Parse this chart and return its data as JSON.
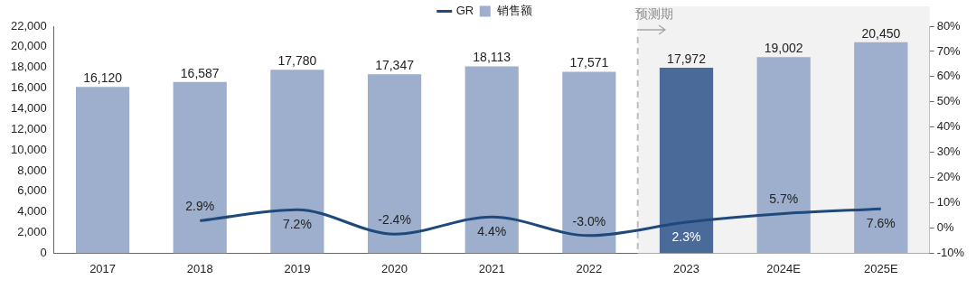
{
  "chart_data": {
    "type": "bar",
    "categories": [
      "2017",
      "2018",
      "2019",
      "2020",
      "2021",
      "2022",
      "2023",
      "2024E",
      "2025E"
    ],
    "series": [
      {
        "name": "GR",
        "type": "line",
        "axis": "y2",
        "color": "#1f497d",
        "values": [
          null,
          2.9,
          7.2,
          -2.4,
          4.4,
          -3.0,
          2.3,
          5.7,
          7.6
        ],
        "value_labels": [
          null,
          "2.9%",
          "7.2%",
          "-2.4%",
          "4.4%",
          "-3.0%",
          "2.3%",
          "5.7%",
          "7.6%"
        ]
      },
      {
        "name": "销售额",
        "color": "#9dafcc",
        "colors": [
          "#9dafcc",
          "#9dafcc",
          "#9dafcc",
          "#9dafcc",
          "#9dafcc",
          "#9dafcc",
          "#4a6a99",
          "#9dafcc",
          "#9dafcc"
        ],
        "values": [
          16120,
          16587,
          17780,
          17347,
          18113,
          17571,
          17972,
          19002,
          20450
        ],
        "value_labels": [
          "16,120",
          "16,587",
          "17,780",
          "17,347",
          "18,113",
          "17,571",
          "17,972",
          "19,002",
          "20,450"
        ]
      }
    ],
    "ylim": [
      0,
      22000
    ],
    "yticks": [
      0,
      {
        "value": 2000,
        "label": "2,000"
      },
      {
        "value": 4000,
        "label": "4,000"
      },
      {
        "value": 6000,
        "label": "6,000"
      },
      {
        "value": 8000,
        "label": "8,000"
      },
      {
        "value": 10000,
        "label": "10,000"
      },
      {
        "value": 12000,
        "label": "12,000"
      },
      {
        "value": 14000,
        "label": "14,000"
      },
      {
        "value": 16000,
        "label": "16,000"
      },
      {
        "value": 18000,
        "label": "18,000"
      },
      {
        "value": 20000,
        "label": "20,000"
      },
      {
        "value": 22000,
        "label": "22,000"
      }
    ],
    "y2lim": [
      -10,
      80
    ],
    "y2ticks": [
      {
        "value": -10,
        "label": "-10%"
      },
      {
        "value": 0,
        "label": "0%"
      },
      {
        "value": 10,
        "label": "10%"
      },
      {
        "value": 20,
        "label": "20%"
      },
      {
        "value": 30,
        "label": "30%"
      },
      {
        "value": 40,
        "label": "40%"
      },
      {
        "value": 50,
        "label": "50%"
      },
      {
        "value": 60,
        "label": "60%"
      },
      {
        "value": 70,
        "label": "70%"
      },
      {
        "value": 80,
        "label": "80%"
      }
    ],
    "bands": [
      {
        "axis": "x",
        "from": "2023",
        "to": "2025E",
        "label": "预测期",
        "color": "#f2f2f2"
      }
    ],
    "legend": "top"
  }
}
